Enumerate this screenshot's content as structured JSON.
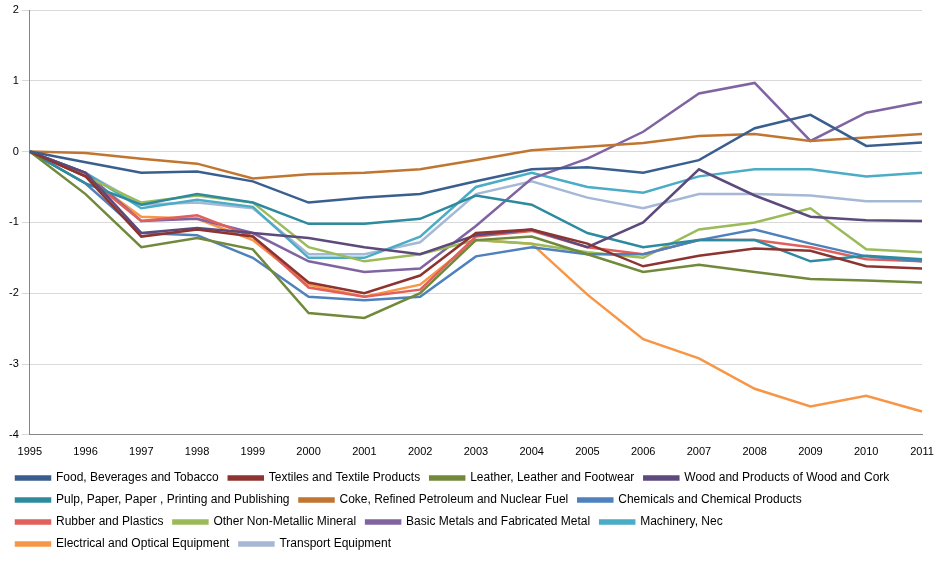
{
  "chart_data": {
    "type": "line",
    "categories": [
      "1995",
      "1996",
      "1997",
      "1998",
      "1999",
      "2000",
      "2001",
      "2002",
      "2003",
      "2004",
      "2005",
      "2006",
      "2007",
      "2008",
      "2009",
      "2010",
      "2011"
    ],
    "ylim": [
      -4,
      2
    ],
    "yticks": [
      -4,
      -3,
      -2,
      -1,
      0,
      1,
      2
    ],
    "grid": true,
    "legend": "bottom",
    "marker": "none",
    "series": [
      {
        "name": "Food, Beverages and Tobacco",
        "color": "#3A5F8F",
        "values": [
          0,
          -0.15,
          -0.3,
          -0.28,
          -0.42,
          -0.72,
          -0.65,
          -0.6,
          -0.42,
          -0.25,
          -0.22,
          -0.3,
          -0.12,
          0.33,
          0.52,
          0.08,
          0.13
        ]
      },
      {
        "name": "Textiles and Textile Products",
        "color": "#8E3430",
        "values": [
          0,
          -0.35,
          -1.2,
          -1.1,
          -1.2,
          -1.85,
          -2.0,
          -1.75,
          -1.15,
          -1.1,
          -1.3,
          -1.62,
          -1.47,
          -1.37,
          -1.4,
          -1.62,
          -1.65
        ]
      },
      {
        "name": "Leather, Leather and Footwear",
        "color": "#71893A",
        "values": [
          0,
          -0.6,
          -1.35,
          -1.22,
          -1.38,
          -2.28,
          -2.35,
          -2.0,
          -1.25,
          -1.2,
          -1.45,
          -1.7,
          -1.6,
          -1.7,
          -1.8,
          -1.82,
          -1.85
        ]
      },
      {
        "name": "Wood and Products of Wood and Cork",
        "color": "#5C4A7D",
        "values": [
          0,
          -0.3,
          -1.15,
          -1.08,
          -1.15,
          -1.22,
          -1.35,
          -1.45,
          -1.18,
          -1.1,
          -1.35,
          -1.0,
          -0.25,
          -0.62,
          -0.92,
          -0.97,
          -0.98
        ]
      },
      {
        "name": "Pulp, Paper, Paper , Printing and Publishing",
        "color": "#2E8A9E",
        "values": [
          0,
          -0.45,
          -0.75,
          -0.6,
          -0.72,
          -1.02,
          -1.02,
          -0.95,
          -0.62,
          -0.75,
          -1.15,
          -1.35,
          -1.25,
          -1.25,
          -1.55,
          -1.47,
          -1.52
        ]
      },
      {
        "name": "Coke, Refined Petroleum and Nuclear Fuel",
        "color": "#C07630",
        "values": [
          0,
          -0.02,
          -0.1,
          -0.17,
          -0.38,
          -0.32,
          -0.3,
          -0.25,
          -0.12,
          0.02,
          0.07,
          0.12,
          0.22,
          0.25,
          0.15,
          0.2,
          0.25
        ]
      },
      {
        "name": "Chemicals and Chemical Products",
        "color": "#4F81BD",
        "values": [
          0,
          -0.45,
          -1.15,
          -1.18,
          -1.5,
          -2.05,
          -2.1,
          -2.05,
          -1.48,
          -1.35,
          -1.45,
          -1.45,
          -1.25,
          -1.1,
          -1.3,
          -1.48,
          -1.55
        ]
      },
      {
        "name": "Rubber and Plastics",
        "color": "#E0605C",
        "values": [
          0,
          -0.35,
          -0.98,
          -0.9,
          -1.2,
          -1.92,
          -2.05,
          -1.95,
          -1.2,
          -1.12,
          -1.35,
          -1.45,
          -1.25,
          -1.25,
          -1.35,
          -1.52,
          -1.55
        ]
      },
      {
        "name": "Other Non-Metallic Mineral",
        "color": "#9BBB59",
        "values": [
          0,
          -0.35,
          -0.72,
          -0.62,
          -0.72,
          -1.35,
          -1.55,
          -1.45,
          -1.25,
          -1.3,
          -1.42,
          -1.5,
          -1.1,
          -1.0,
          -0.8,
          -1.38,
          -1.42
        ]
      },
      {
        "name": "Basic Metals and Fabricated Metal",
        "color": "#8064A2",
        "values": [
          0,
          -0.3,
          -0.98,
          -0.95,
          -1.15,
          -1.55,
          -1.7,
          -1.65,
          -1.05,
          -0.38,
          -0.1,
          0.28,
          0.82,
          0.97,
          0.15,
          0.55,
          0.7
        ]
      },
      {
        "name": "Machinery, Nec",
        "color": "#4BACC6",
        "values": [
          0,
          -0.3,
          -0.8,
          -0.68,
          -0.78,
          -1.5,
          -1.5,
          -1.2,
          -0.5,
          -0.3,
          -0.5,
          -0.58,
          -0.35,
          -0.25,
          -0.25,
          -0.35,
          -0.3
        ]
      },
      {
        "name": "Electrical and Optical Equipment",
        "color": "#F79646",
        "values": [
          0,
          -0.35,
          -0.92,
          -0.95,
          -1.25,
          -1.88,
          -2.05,
          -1.88,
          -1.25,
          -1.3,
          -2.02,
          -2.65,
          -2.92,
          -3.35,
          -3.6,
          -3.45,
          -3.67
        ]
      },
      {
        "name": "Transport Equipment",
        "color": "#A5B8D6",
        "values": [
          0,
          -0.3,
          -0.75,
          -0.72,
          -0.8,
          -1.45,
          -1.45,
          -1.28,
          -0.6,
          -0.42,
          -0.65,
          -0.8,
          -0.6,
          -0.6,
          -0.62,
          -0.7,
          -0.7
        ]
      }
    ]
  }
}
